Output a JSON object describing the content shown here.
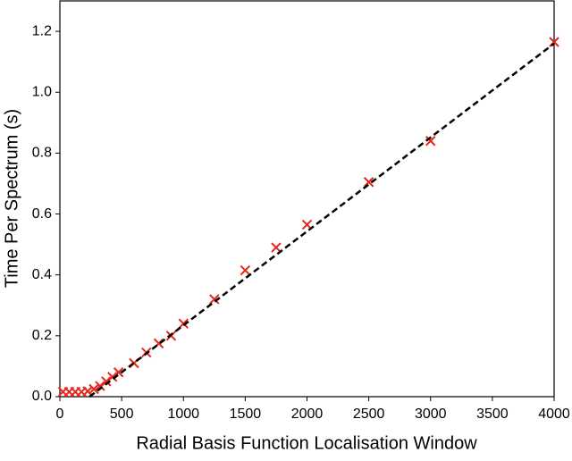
{
  "chart_data": {
    "type": "scatter",
    "x_label": "Radial Basis Function Localisation Window",
    "y_label": "Time Per Spectrum (s)",
    "xlim": [
      0,
      4000
    ],
    "ylim": [
      0,
      1.3
    ],
    "xticks": [
      0,
      500,
      1000,
      1500,
      2000,
      2500,
      3000,
      3500,
      4000
    ],
    "yticks": [
      {
        "value": 0,
        "label": "0.0"
      },
      0.2,
      0.4,
      0.6,
      0.8,
      {
        "value": 1,
        "label": "1.0"
      },
      1.2
    ],
    "series": [
      {
        "color": "#e8251b",
        "marker": "x",
        "x": [
          25,
          75,
          125,
          175,
          225,
          275,
          325,
          375,
          425,
          475,
          600,
          700,
          800,
          900,
          1000,
          1250,
          1500,
          1750,
          2000,
          2500,
          3000,
          4000
        ],
        "values": [
          0.016,
          0.016,
          0.016,
          0.016,
          0.018,
          0.025,
          0.035,
          0.05,
          0.065,
          0.08,
          0.11,
          0.145,
          0.175,
          0.2,
          0.24,
          0.32,
          0.415,
          0.49,
          0.565,
          0.705,
          0.84,
          1.165
        ]
      },
      {
        "color": "#000000",
        "marker": "dashed-line",
        "x": [
          240,
          4000
        ],
        "values": [
          0,
          1.16
        ]
      }
    ]
  }
}
